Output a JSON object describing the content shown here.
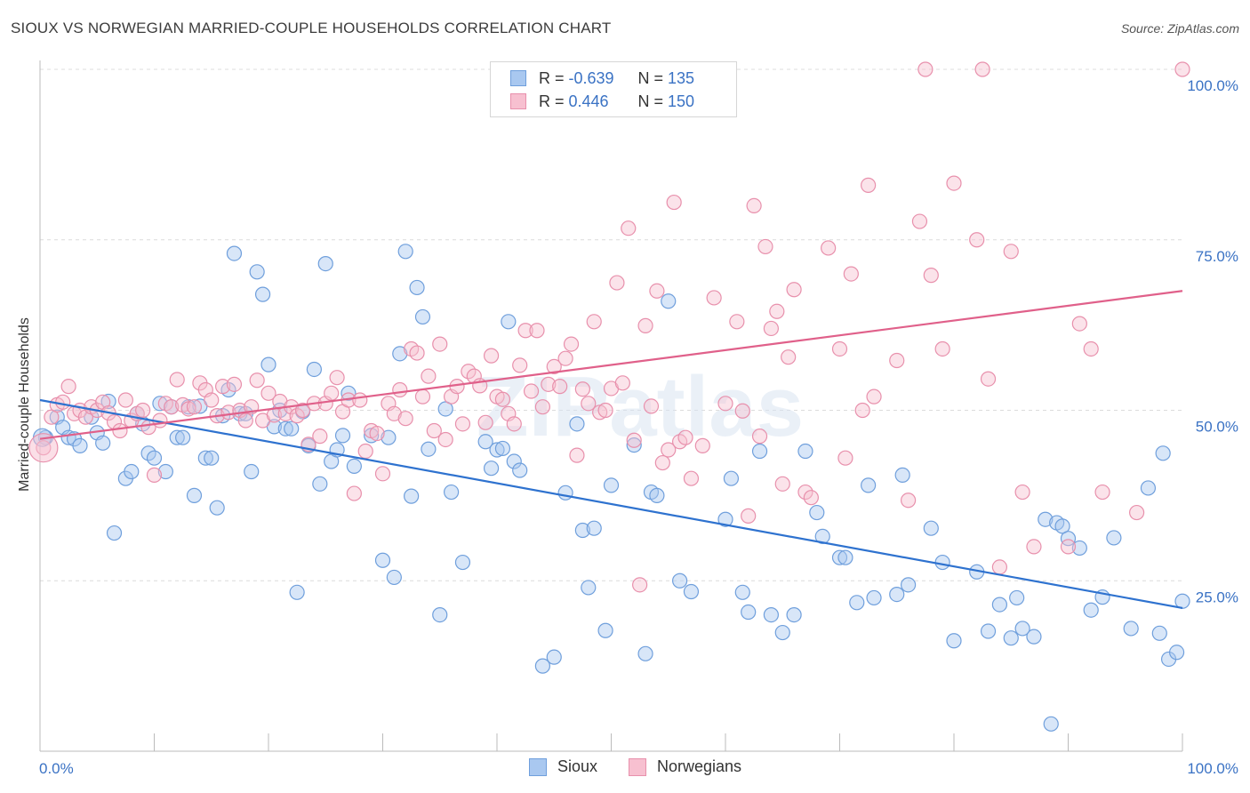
{
  "header": {
    "title": "SIOUX VS NORWEGIAN MARRIED-COUPLE HOUSEHOLDS CORRELATION CHART",
    "source": "Source: ZipAtlas.com"
  },
  "watermark": "ZIPatlas",
  "legend": {
    "rows": [
      {
        "r_label": "R = ",
        "r_value": "-0.639",
        "n_label": "N = ",
        "n_value": "135",
        "color": "#a9c8f0",
        "border": "#6f9fdc"
      },
      {
        "r_label": "R = ",
        "r_value": "0.446",
        "n_label": "N = ",
        "n_value": "150",
        "color": "#f7c0d0",
        "border": "#e890ac"
      }
    ]
  },
  "bottom_legend": {
    "items": [
      {
        "label": "Sioux",
        "color": "#a9c8f0",
        "border": "#6f9fdc"
      },
      {
        "label": "Norwegians",
        "color": "#f7c0d0",
        "border": "#e890ac"
      }
    ]
  },
  "chart_data": {
    "type": "scatter",
    "title": "SIOUX VS NORWEGIAN MARRIED-COUPLE HOUSEHOLDS CORRELATION CHART",
    "xlabel": "",
    "ylabel": "Married-couple Households",
    "xlim": [
      0,
      100
    ],
    "ylim": [
      0,
      100
    ],
    "x_tick_labels": [
      "0.0%",
      "100.0%"
    ],
    "y_tick_labels": [
      "25.0%",
      "50.0%",
      "75.0%",
      "100.0%"
    ],
    "y_ticks": [
      25,
      50,
      75,
      100
    ],
    "grid": true,
    "legend_position": "top-center",
    "colors": {
      "sioux": "#6f9fdc",
      "norwegians": "#e890ac",
      "sioux_line": "#2e72cf",
      "norwegians_line": "#e0608a",
      "tick_label": "#3a72c4"
    },
    "series": [
      {
        "name": "Sioux",
        "r": -0.639,
        "n": 135,
        "trend": {
          "x0": 0,
          "y0": 51.5,
          "x1": 100,
          "y1": 21.0
        },
        "points": [
          [
            0.5,
            46
          ],
          [
            1.5,
            49
          ],
          [
            2,
            47.5
          ],
          [
            2.5,
            46
          ],
          [
            3,
            45.8
          ],
          [
            3.5,
            44.8
          ],
          [
            4.5,
            49
          ],
          [
            5,
            46.7
          ],
          [
            5.5,
            45.2
          ],
          [
            6,
            51.3
          ],
          [
            6.5,
            32
          ],
          [
            7.5,
            40
          ],
          [
            8,
            41
          ],
          [
            8.5,
            49.5
          ],
          [
            9,
            48
          ],
          [
            9.5,
            43.7
          ],
          [
            10,
            43
          ],
          [
            10.5,
            51
          ],
          [
            11,
            41
          ],
          [
            11.5,
            50.5
          ],
          [
            12,
            46
          ],
          [
            12.5,
            46
          ],
          [
            13,
            50.5
          ],
          [
            13.5,
            37.5
          ],
          [
            14,
            50.6
          ],
          [
            14.5,
            43
          ],
          [
            15,
            43
          ],
          [
            15.5,
            35.7
          ],
          [
            16,
            49.2
          ],
          [
            16.5,
            53
          ],
          [
            17,
            73
          ],
          [
            17.5,
            49.5
          ],
          [
            18,
            49.5
          ],
          [
            18.5,
            41
          ],
          [
            19,
            70.3
          ],
          [
            19.5,
            67
          ],
          [
            20,
            56.7
          ],
          [
            20.5,
            47.6
          ],
          [
            21,
            50
          ],
          [
            21.5,
            47.3
          ],
          [
            22,
            47.3
          ],
          [
            22.5,
            23.3
          ],
          [
            23,
            49.8
          ],
          [
            23.5,
            44.8
          ],
          [
            24,
            56
          ],
          [
            24.5,
            39.2
          ],
          [
            25,
            71.5
          ],
          [
            25.5,
            42.5
          ],
          [
            26,
            44.2
          ],
          [
            26.5,
            46.3
          ],
          [
            27,
            52.5
          ],
          [
            27.5,
            41.8
          ],
          [
            29,
            46.3
          ],
          [
            30,
            28
          ],
          [
            30.5,
            46
          ],
          [
            31,
            25.5
          ],
          [
            31.5,
            58.3
          ],
          [
            32,
            73.3
          ],
          [
            32.5,
            37.4
          ],
          [
            33,
            68
          ],
          [
            33.5,
            63.7
          ],
          [
            34,
            44.3
          ],
          [
            35,
            20
          ],
          [
            35.5,
            50.2
          ],
          [
            36,
            38
          ],
          [
            37,
            27.7
          ],
          [
            39,
            45.4
          ],
          [
            39.5,
            41.5
          ],
          [
            40,
            44.2
          ],
          [
            40.5,
            44.4
          ],
          [
            41,
            63
          ],
          [
            41.5,
            42.5
          ],
          [
            42,
            41.2
          ],
          [
            44,
            12.5
          ],
          [
            45,
            13.8
          ],
          [
            46,
            37.9
          ],
          [
            47,
            48
          ],
          [
            47.5,
            32.4
          ],
          [
            48,
            24
          ],
          [
            48.5,
            32.7
          ],
          [
            49.5,
            17.7
          ],
          [
            50,
            39
          ],
          [
            52,
            44.9
          ],
          [
            53,
            14.3
          ],
          [
            53.5,
            38
          ],
          [
            54,
            37.5
          ],
          [
            55,
            66
          ],
          [
            56,
            25
          ],
          [
            57,
            23.4
          ],
          [
            60,
            34
          ],
          [
            60.5,
            40
          ],
          [
            61.5,
            23.3
          ],
          [
            62,
            20.4
          ],
          [
            63,
            44
          ],
          [
            64,
            20
          ],
          [
            65,
            17.4
          ],
          [
            66,
            20
          ],
          [
            67,
            44
          ],
          [
            68,
            35
          ],
          [
            68.5,
            31.5
          ],
          [
            70,
            28.4
          ],
          [
            70.5,
            28.4
          ],
          [
            71.5,
            21.8
          ],
          [
            72.5,
            39
          ],
          [
            73,
            22.5
          ],
          [
            75,
            23
          ],
          [
            75.5,
            40.5
          ],
          [
            76,
            24.4
          ],
          [
            78,
            32.7
          ],
          [
            79,
            27.7
          ],
          [
            80,
            16.2
          ],
          [
            82,
            26.3
          ],
          [
            83,
            17.6
          ],
          [
            84,
            21.5
          ],
          [
            85,
            16.6
          ],
          [
            85.5,
            22.5
          ],
          [
            86,
            18
          ],
          [
            87,
            16.8
          ],
          [
            88,
            34
          ],
          [
            88.5,
            4
          ],
          [
            89,
            33.5
          ],
          [
            89.5,
            33
          ],
          [
            90,
            31.2
          ],
          [
            91,
            29.8
          ],
          [
            92,
            20.7
          ],
          [
            93,
            22.6
          ],
          [
            94,
            31.3
          ],
          [
            95.5,
            18
          ],
          [
            97,
            38.6
          ],
          [
            98,
            17.3
          ],
          [
            98.3,
            43.7
          ],
          [
            98.8,
            13.5
          ],
          [
            99.5,
            14.5
          ],
          [
            100,
            22
          ]
        ]
      },
      {
        "name": "Norwegians",
        "r": 0.446,
        "n": 150,
        "trend": {
          "x0": 0,
          "y0": 45.8,
          "x1": 100,
          "y1": 67.5
        },
        "points": [
          [
            0.3,
            44.5
          ],
          [
            1,
            49
          ],
          [
            1.5,
            50.8
          ],
          [
            2,
            51.2
          ],
          [
            2.5,
            53.5
          ],
          [
            3,
            49.5
          ],
          [
            3.5,
            50
          ],
          [
            4,
            49
          ],
          [
            4.5,
            50.5
          ],
          [
            5,
            50
          ],
          [
            5.5,
            51.2
          ],
          [
            6,
            49.6
          ],
          [
            6.5,
            48.3
          ],
          [
            7,
            47
          ],
          [
            7.5,
            51.5
          ],
          [
            8,
            48.5
          ],
          [
            8.5,
            49.5
          ],
          [
            9,
            50
          ],
          [
            9.5,
            47.5
          ],
          [
            10,
            40.5
          ],
          [
            10.5,
            48.5
          ],
          [
            11,
            51
          ],
          [
            11.5,
            50.5
          ],
          [
            12,
            54.5
          ],
          [
            12.5,
            50.8
          ],
          [
            13,
            50.2
          ],
          [
            13.5,
            50.5
          ],
          [
            14,
            54
          ],
          [
            14.5,
            53
          ],
          [
            15,
            51.5
          ],
          [
            15.5,
            49.2
          ],
          [
            16,
            53.5
          ],
          [
            16.5,
            49.7
          ],
          [
            17,
            53.8
          ],
          [
            17.5,
            50
          ],
          [
            18,
            48.5
          ],
          [
            18.5,
            50.5
          ],
          [
            19,
            54.4
          ],
          [
            19.5,
            48.5
          ],
          [
            20,
            52.5
          ],
          [
            20.5,
            49.3
          ],
          [
            21,
            51.3
          ],
          [
            21.5,
            49.5
          ],
          [
            22,
            50.5
          ],
          [
            22.5,
            49.2
          ],
          [
            23,
            50
          ],
          [
            23.5,
            45
          ],
          [
            24,
            51
          ],
          [
            24.5,
            46.2
          ],
          [
            25,
            51
          ],
          [
            25.5,
            52.5
          ],
          [
            26,
            54.8
          ],
          [
            26.5,
            49.8
          ],
          [
            27,
            51.5
          ],
          [
            27.5,
            37.8
          ],
          [
            28,
            51.5
          ],
          [
            28.5,
            44
          ],
          [
            29,
            47
          ],
          [
            29.5,
            46.6
          ],
          [
            30,
            40.7
          ],
          [
            30.5,
            51
          ],
          [
            31,
            49.5
          ],
          [
            31.5,
            53
          ],
          [
            32,
            48.8
          ],
          [
            32.5,
            59
          ],
          [
            33,
            58.4
          ],
          [
            33.5,
            52
          ],
          [
            34,
            55
          ],
          [
            34.5,
            47
          ],
          [
            35,
            59.7
          ],
          [
            35.5,
            45.7
          ],
          [
            36,
            52
          ],
          [
            36.5,
            53.5
          ],
          [
            37,
            48
          ],
          [
            37.5,
            55.7
          ],
          [
            38,
            55
          ],
          [
            38.5,
            53.6
          ],
          [
            39,
            48.2
          ],
          [
            39.5,
            58
          ],
          [
            40,
            52
          ],
          [
            40.5,
            51.6
          ],
          [
            41,
            49.5
          ],
          [
            41.5,
            48
          ],
          [
            42,
            56.6
          ],
          [
            42.5,
            61.7
          ],
          [
            43,
            52.8
          ],
          [
            43.5,
            61.7
          ],
          [
            44,
            50.5
          ],
          [
            44.5,
            53.8
          ],
          [
            45,
            56.4
          ],
          [
            45.5,
            53.5
          ],
          [
            46,
            57.6
          ],
          [
            46.5,
            59.7
          ],
          [
            47,
            43.4
          ],
          [
            47.5,
            53.1
          ],
          [
            48,
            51
          ],
          [
            48.5,
            63
          ],
          [
            49,
            49.7
          ],
          [
            49.5,
            50
          ],
          [
            50,
            53.2
          ],
          [
            50.5,
            68.7
          ],
          [
            51,
            54
          ],
          [
            51.5,
            76.7
          ],
          [
            52,
            45.6
          ],
          [
            52.5,
            24.4
          ],
          [
            53,
            62.4
          ],
          [
            53.5,
            50.6
          ],
          [
            54,
            67.5
          ],
          [
            54.5,
            42.3
          ],
          [
            55,
            44.2
          ],
          [
            55.5,
            80.5
          ],
          [
            56,
            45.4
          ],
          [
            56.5,
            46
          ],
          [
            57,
            40
          ],
          [
            58,
            44.8
          ],
          [
            59,
            66.5
          ],
          [
            60,
            51
          ],
          [
            61,
            63
          ],
          [
            61.5,
            49.9
          ],
          [
            62,
            34.5
          ],
          [
            62.5,
            80
          ],
          [
            63,
            46.2
          ],
          [
            63.5,
            74
          ],
          [
            64,
            62
          ],
          [
            64.5,
            64.5
          ],
          [
            65,
            39.2
          ],
          [
            65.5,
            57.8
          ],
          [
            66,
            67.7
          ],
          [
            67,
            38
          ],
          [
            67.5,
            37.2
          ],
          [
            69,
            73.8
          ],
          [
            70,
            59
          ],
          [
            70.5,
            43
          ],
          [
            71,
            70
          ],
          [
            72,
            50
          ],
          [
            72.5,
            83
          ],
          [
            73,
            52
          ],
          [
            75,
            57.3
          ],
          [
            76,
            36.8
          ],
          [
            77,
            77.7
          ],
          [
            78,
            69.8
          ],
          [
            79,
            59
          ],
          [
            80,
            83.3
          ],
          [
            82,
            75
          ],
          [
            83,
            54.6
          ],
          [
            84,
            27
          ],
          [
            85,
            73.3
          ],
          [
            86,
            38
          ],
          [
            87,
            30
          ],
          [
            90,
            30
          ],
          [
            91,
            62.7
          ],
          [
            92,
            59
          ],
          [
            93,
            38
          ],
          [
            96,
            35
          ],
          [
            77.5,
            100
          ],
          [
            82.5,
            100
          ],
          [
            100,
            100
          ]
        ]
      }
    ]
  }
}
